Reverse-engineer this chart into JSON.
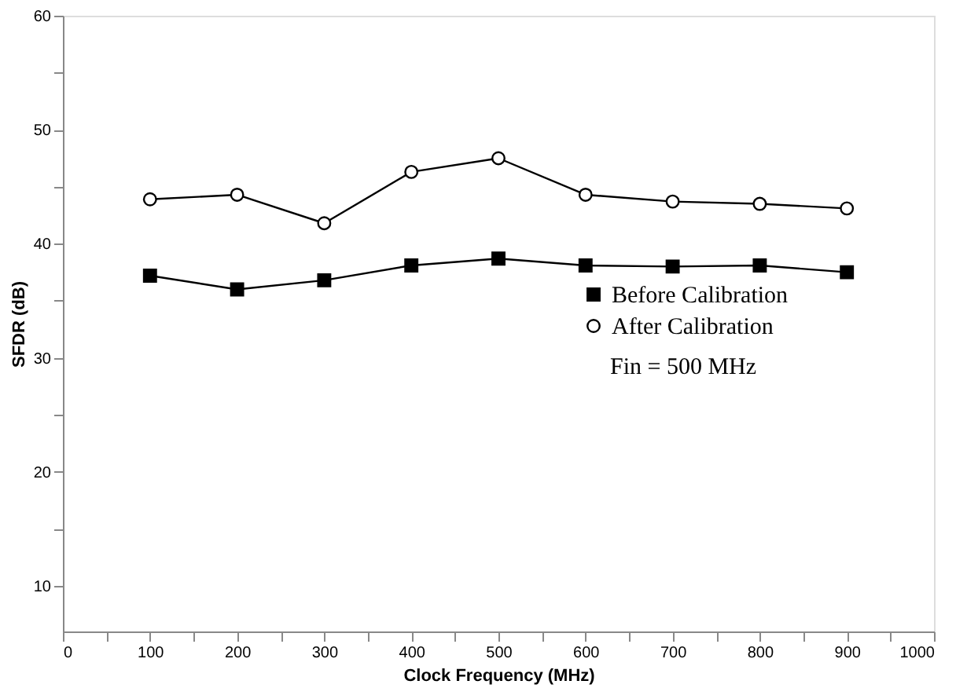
{
  "chart_data": {
    "type": "line",
    "xlabel": "Clock Frequency (MHz)",
    "ylabel": "SFDR (dB)",
    "x": [
      100,
      200,
      300,
      400,
      500,
      600,
      700,
      800,
      900
    ],
    "series": [
      {
        "name": "Before Calibration",
        "color": "#000000",
        "marker": "square",
        "values": [
          37.2,
          36.0,
          36.8,
          38.1,
          38.7,
          38.1,
          38.0,
          38.1,
          37.5
        ]
      },
      {
        "name": "After Calibration",
        "color": "#000000",
        "marker": "circle",
        "values": [
          43.9,
          44.3,
          41.8,
          46.3,
          47.5,
          44.3,
          43.7,
          43.5,
          43.1
        ]
      }
    ],
    "xlim": [
      0,
      1000
    ],
    "ylim": [
      6,
      60
    ],
    "xticks": [
      0,
      {
        "value": 50,
        "label": null
      },
      100,
      {
        "value": 150,
        "label": null
      },
      200,
      {
        "value": 250,
        "label": null
      },
      300,
      {
        "value": 350,
        "label": null
      },
      400,
      {
        "value": 450,
        "label": null
      },
      500,
      {
        "value": 550,
        "label": null
      },
      600,
      {
        "value": 650,
        "label": null
      },
      700,
      {
        "value": 750,
        "label": null
      },
      800,
      {
        "value": 850,
        "label": null
      },
      900,
      {
        "value": 950,
        "label": null
      },
      1000
    ],
    "yticks": [
      10,
      {
        "value": 15,
        "label": null
      },
      20,
      {
        "value": 25,
        "label": null
      },
      30,
      {
        "value": 35,
        "label": null
      },
      40,
      {
        "value": 45,
        "label": null
      },
      50,
      {
        "value": 55,
        "label": null
      },
      60
    ],
    "annotations": [
      "Fin = 500 MHz"
    ],
    "legend": "right",
    "grid": false,
    "line_style": "solid"
  }
}
